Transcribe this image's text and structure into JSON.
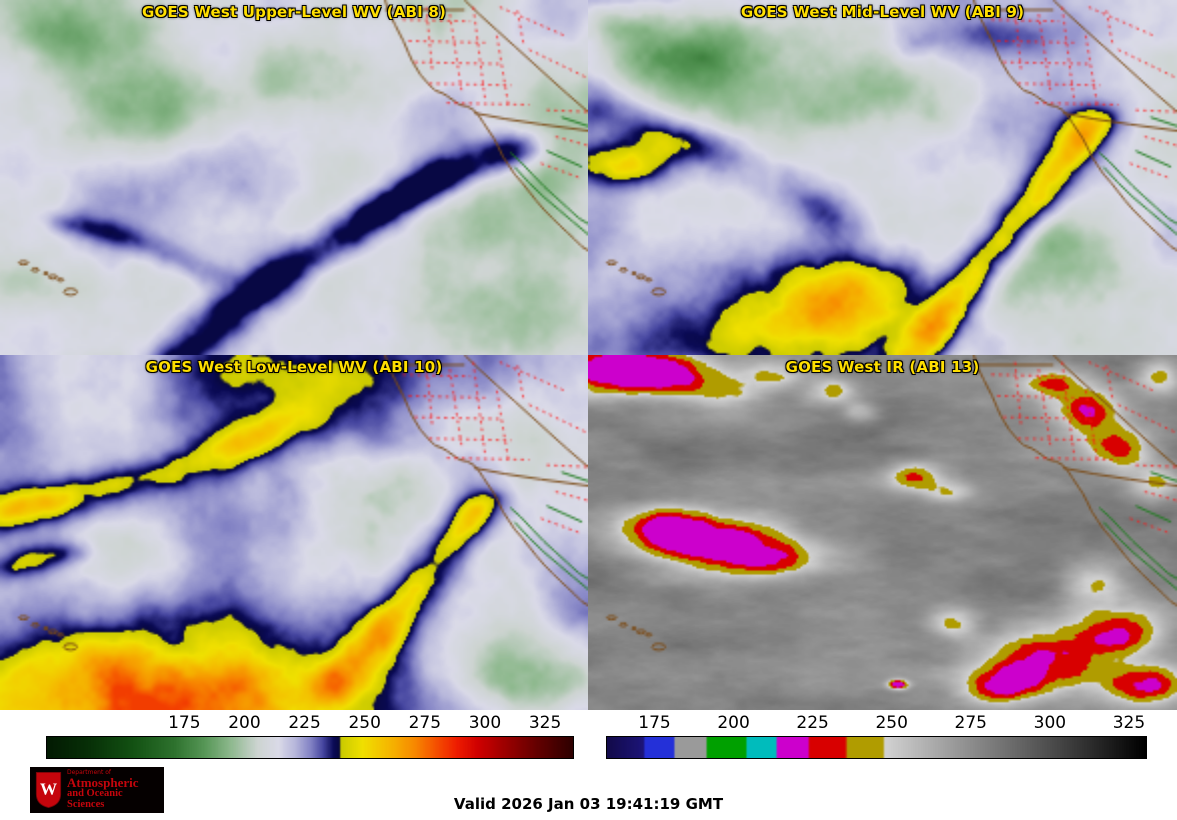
{
  "panels": [
    {
      "id": "abi8",
      "title": "GOES West Upper-Level WV (ABI 8)"
    },
    {
      "id": "abi9",
      "title": "GOES West Mid-Level WV (ABI 9)"
    },
    {
      "id": "abi10",
      "title": "GOES West Low-Level WV (ABI 10)"
    },
    {
      "id": "abi13",
      "title": "GOES West IR (ABI 13)"
    }
  ],
  "colorbars": {
    "wv": {
      "ticks": [
        "175",
        "200",
        "225",
        "250",
        "275",
        "300",
        "325"
      ],
      "stops": [
        [
          0,
          "#021a02"
        ],
        [
          0.08,
          "#073007"
        ],
        [
          0.16,
          "#125012"
        ],
        [
          0.24,
          "#2d712d"
        ],
        [
          0.3,
          "#579757"
        ],
        [
          0.35,
          "#8fb98f"
        ],
        [
          0.4,
          "#cdd4d1"
        ],
        [
          0.44,
          "#dadae8"
        ],
        [
          0.47,
          "#b9b9dc"
        ],
        [
          0.5,
          "#8585c6"
        ],
        [
          0.525,
          "#4646a0"
        ],
        [
          0.545,
          "#0a0a55"
        ],
        [
          0.556,
          "#08083e"
        ],
        [
          0.559,
          "#caca00"
        ],
        [
          0.6,
          "#f0e000"
        ],
        [
          0.65,
          "#f5b800"
        ],
        [
          0.7,
          "#f78800"
        ],
        [
          0.74,
          "#f55000"
        ],
        [
          0.78,
          "#ee1c00"
        ],
        [
          0.82,
          "#cf0000"
        ],
        [
          0.87,
          "#9e0000"
        ],
        [
          0.93,
          "#660000"
        ],
        [
          1,
          "#2e0000"
        ]
      ]
    },
    "ir": {
      "ticks": [
        "175",
        "200",
        "225",
        "250",
        "275",
        "300",
        "325"
      ],
      "stops": [
        [
          0,
          "#120a4a"
        ],
        [
          0.066,
          "#1c1478"
        ],
        [
          0.07,
          "#2430d8"
        ],
        [
          0.122,
          "#2430d8"
        ],
        [
          0.126,
          "#9a9a9a"
        ],
        [
          0.182,
          "#9a9a9a"
        ],
        [
          0.186,
          "#00a000"
        ],
        [
          0.256,
          "#00a000"
        ],
        [
          0.26,
          "#00bcbc"
        ],
        [
          0.312,
          "#00bcbc"
        ],
        [
          0.316,
          "#cc00cc"
        ],
        [
          0.372,
          "#cc00cc"
        ],
        [
          0.376,
          "#d80000"
        ],
        [
          0.442,
          "#d80000"
        ],
        [
          0.446,
          "#b09c00"
        ],
        [
          0.512,
          "#b09c00"
        ],
        [
          0.516,
          "#d2d2d2"
        ],
        [
          1,
          "#000000"
        ]
      ]
    }
  },
  "map_colors": {
    "state_border": "#7a4a14",
    "mexico_border": "#1e7a1e",
    "county_lines": "#ff1414"
  },
  "logo": {
    "dept": "Department of",
    "name1": "Atmospheric",
    "name2": "and Oceanic Sciences",
    "crest_letter": "W",
    "text_color": "#c5050c",
    "bg_color": "#050000"
  },
  "footer": {
    "valid": "Valid 2026 Jan 03 19:41:19 GMT"
  }
}
